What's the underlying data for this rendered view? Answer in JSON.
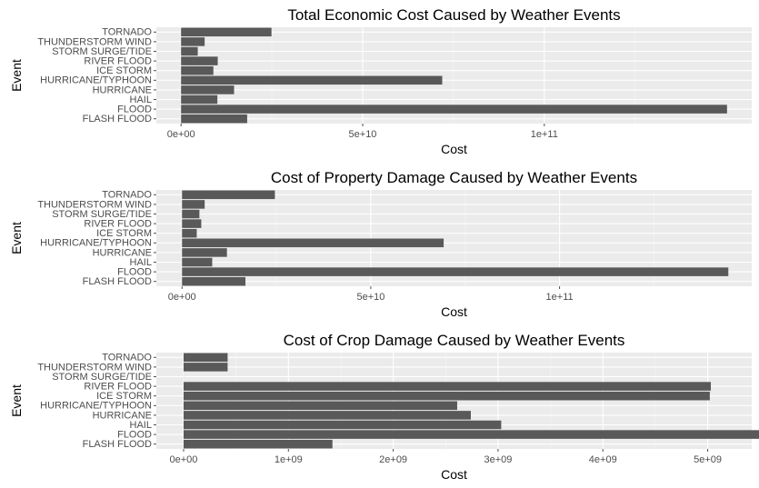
{
  "chart_data": [
    {
      "type": "bar",
      "orientation": "horizontal",
      "title": "Total Economic Cost Caused by Weather Events",
      "xlabel": "Cost",
      "ylabel": "Event",
      "grid": true,
      "categories": [
        "FLASH FLOOD",
        "FLOOD",
        "HAIL",
        "HURRICANE",
        "HURRICANE/TYPHOON",
        "ICE STORM",
        "RIVER FLOOD",
        "STORM SURGE/TIDE",
        "THUNDERSTORM WIND",
        "TORNADO"
      ],
      "values": [
        18200000000,
        150300000000,
        10000000000,
        14600000000,
        71900000000,
        8900000000,
        10100000000,
        4600000000,
        6500000000,
        24900000000
      ],
      "xlim": [
        -6800000000,
        157100000000
      ],
      "xticks": [
        0,
        50000000000,
        100000000000
      ],
      "xtick_labels": [
        "0e+00",
        "5e+10",
        "1e+11"
      ]
    },
    {
      "type": "bar",
      "orientation": "horizontal",
      "title": "Cost of Property Damage Caused by Weather Events",
      "xlabel": "Cost",
      "ylabel": "Event",
      "grid": true,
      "categories": [
        "FLASH FLOOD",
        "FLOOD",
        "HAIL",
        "HURRICANE",
        "HURRICANE/TYPHOON",
        "ICE STORM",
        "RIVER FLOOD",
        "STORM SURGE/TIDE",
        "THUNDERSTORM WIND",
        "TORNADO"
      ],
      "values": [
        16800000000,
        144700000000,
        8000000000,
        11900000000,
        69300000000,
        3900000000,
        5100000000,
        4600000000,
        6000000000,
        24600000000
      ],
      "xlim": [
        -6800000000,
        150900000000
      ],
      "xticks": [
        0,
        50000000000,
        100000000000
      ],
      "xtick_labels": [
        "0e+00",
        "5e+10",
        "1e+11"
      ]
    },
    {
      "type": "bar",
      "orientation": "horizontal",
      "title": "Cost of Crop Damage Caused by Weather Events",
      "xlabel": "Cost",
      "ylabel": "Event",
      "grid": true,
      "categories": [
        "FLASH FLOOD",
        "FLOOD",
        "HAIL",
        "HURRICANE",
        "HURRICANE/TYPHOON",
        "ICE STORM",
        "RIVER FLOOD",
        "STORM SURGE/TIDE",
        "THUNDERSTORM WIND",
        "TORNADO"
      ],
      "values": [
        1420000000,
        5660000000,
        3030000000,
        2740000000,
        2610000000,
        5020000000,
        5030000000,
        850000,
        420000000,
        420000000
      ],
      "xlim": [
        -260000000,
        5420000000
      ],
      "xticks": [
        0,
        1000000000,
        2000000000,
        3000000000,
        4000000000,
        5000000000
      ],
      "xtick_labels": [
        "0e+00",
        "1e+09",
        "2e+09",
        "3e+09",
        "4e+09",
        "5e+09"
      ]
    }
  ]
}
